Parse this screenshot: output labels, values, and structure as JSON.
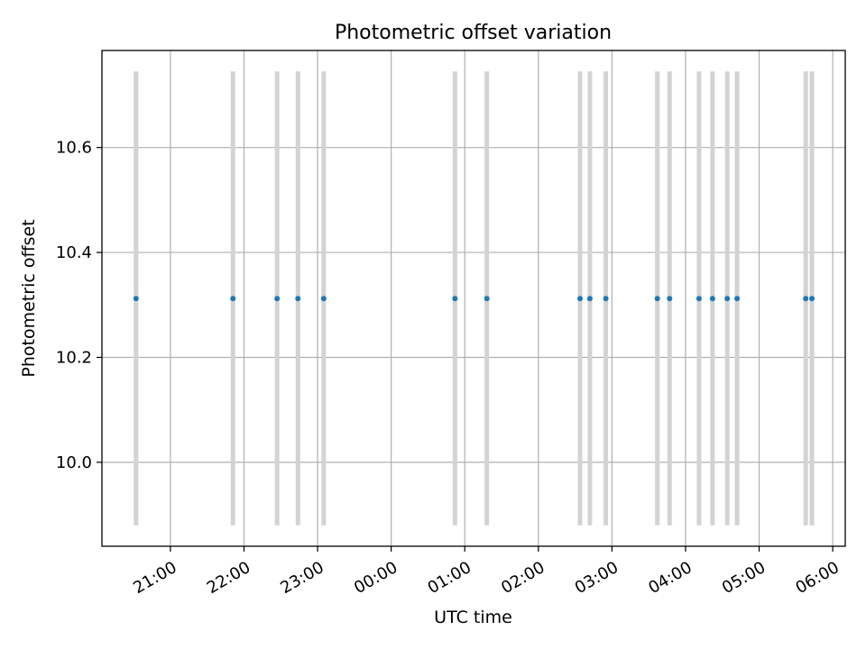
{
  "chart_data": {
    "type": "scatter",
    "title": "Photometric offset variation",
    "xlabel": "UTC time",
    "ylabel": "Photometric offset",
    "x_tick_labels": [
      "21:00",
      "22:00",
      "23:00",
      "00:00",
      "01:00",
      "02:00",
      "03:00",
      "04:00",
      "05:00",
      "06:00"
    ],
    "x_tick_hours": [
      21,
      22,
      23,
      24,
      25,
      26,
      27,
      28,
      29,
      30
    ],
    "xlim_hours": [
      20.07,
      30.17
    ],
    "y_ticks": [
      10.0,
      10.2,
      10.4,
      10.6
    ],
    "y_tick_labels": [
      "10.0",
      "10.2",
      "10.4",
      "10.6"
    ],
    "ylim": [
      9.84,
      10.785
    ],
    "grid": true,
    "points": {
      "times": [
        "20:32",
        "21:51",
        "22:27",
        "22:44",
        "23:05",
        "00:52",
        "01:18",
        "02:34",
        "02:42",
        "02:55",
        "03:37",
        "03:47",
        "04:11",
        "04:22",
        "04:34",
        "04:42",
        "05:38",
        "05:43"
      ],
      "y": 10.312
    },
    "error_bars": {
      "lower": 9.88,
      "upper": 10.745
    },
    "colors": {
      "point": "#1f77b4",
      "error_bar": "#d3d3d3",
      "grid": "#b0b0b0",
      "axes": "#000000"
    }
  }
}
